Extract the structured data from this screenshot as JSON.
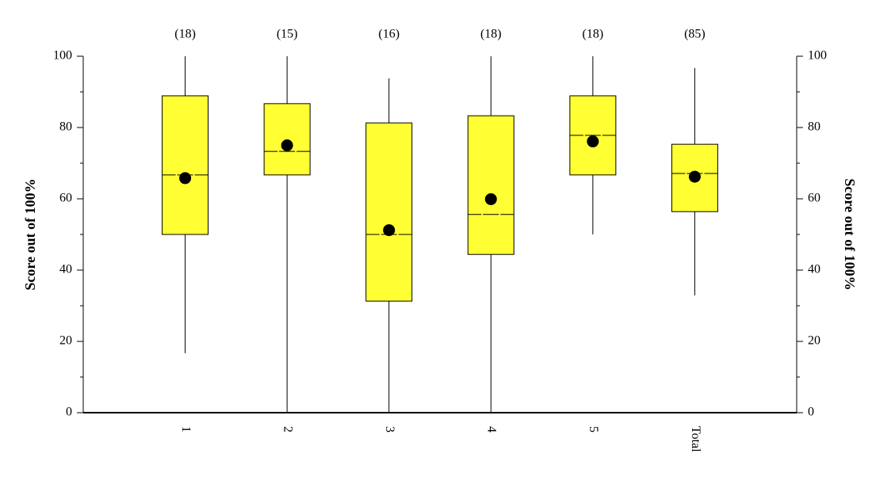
{
  "chart_data": {
    "type": "box",
    "categories": [
      "1",
      "2",
      "3",
      "4",
      "5",
      "Total"
    ],
    "count_labels": [
      "(18)",
      "(15)",
      "(16)",
      "(18)",
      "(18)",
      "(85)"
    ],
    "min": [
      16.7,
      0,
      0,
      0,
      50,
      32.9
    ],
    "q1": [
      50,
      66.7,
      31.3,
      44.4,
      66.7,
      56.4
    ],
    "median": [
      66.7,
      73.3,
      50,
      55.6,
      77.8,
      67.1
    ],
    "q3": [
      88.9,
      86.7,
      81.3,
      83.3,
      88.9,
      75.3
    ],
    "max": [
      100,
      100,
      93.8,
      100,
      100,
      96.7
    ],
    "mean": [
      65.8,
      75,
      51.2,
      59.9,
      76.1,
      66.2
    ],
    "color": "#ffff33",
    "mean_color": "#000000",
    "y_label": "Score out of 100%",
    "y2_label": "Score out of 100%",
    "ylim": [
      0,
      100
    ],
    "yticks": [
      0,
      20,
      40,
      60,
      80,
      100
    ],
    "y_minor_ticks": [
      10,
      30,
      50,
      70,
      90
    ],
    "y2lim": [
      0,
      100
    ],
    "y2ticks": [
      0,
      20,
      40,
      60,
      80,
      100
    ],
    "y2_minor_ticks": [
      10,
      30,
      50,
      70,
      90
    ]
  }
}
